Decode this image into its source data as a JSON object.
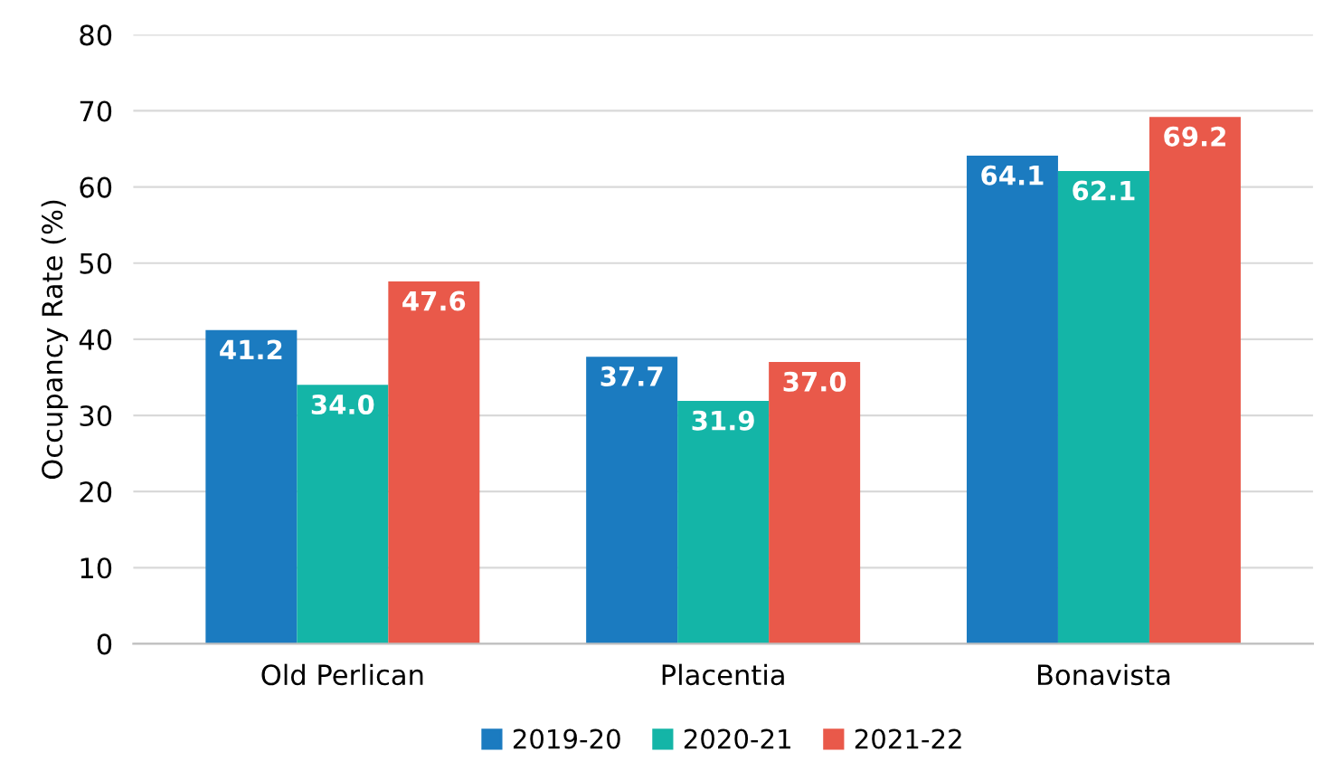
{
  "chart_data": {
    "type": "bar",
    "ylabel": "Occupancy Rate (%)",
    "categories": [
      "Old Perlican",
      "Placentia",
      "Bonavista"
    ],
    "series": [
      {
        "name": "2019-20",
        "color": "#1b7bc0",
        "values": [
          41.2,
          37.7,
          64.1
        ],
        "value_labels": [
          "41.2",
          "37.7",
          "64.1"
        ]
      },
      {
        "name": "2020-21",
        "color": "#14b5a7",
        "values": [
          34.0,
          31.9,
          62.1
        ],
        "value_labels": [
          "34.0",
          "31.9",
          "62.1"
        ]
      },
      {
        "name": "2021-22",
        "color": "#e9594a",
        "values": [
          47.6,
          37.0,
          69.2
        ],
        "value_labels": [
          "47.6",
          "37.0",
          "69.2"
        ]
      }
    ],
    "ylim": [
      0,
      80
    ],
    "yticks": [
      0,
      10,
      20,
      30,
      40,
      50,
      60,
      70,
      80
    ],
    "grid": "y",
    "legend": "bottom"
  }
}
